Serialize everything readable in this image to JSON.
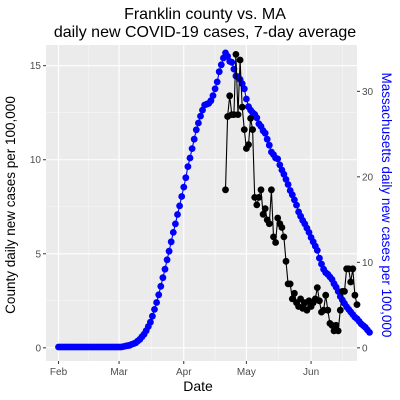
{
  "chart_data": {
    "type": "line",
    "title": "Franklin county vs. MA",
    "subtitle": "daily new COVID-19 cases, 7-day average",
    "xlabel": "Date",
    "ylabel_left": "County daily new cases per 100,000",
    "ylabel_right": "Massachusetts daily new cases per 100,000",
    "x_domain": [
      "2020-01-26",
      "2020-06-23"
    ],
    "x_ticks": [
      {
        "date": "2020-02-01",
        "label": "Feb"
      },
      {
        "date": "2020-03-01",
        "label": "Mar"
      },
      {
        "date": "2020-04-01",
        "label": "Apr"
      },
      {
        "date": "2020-05-01",
        "label": "May"
      },
      {
        "date": "2020-06-01",
        "label": "Jun"
      }
    ],
    "y_left_lim": [
      -0.7,
      16.1
    ],
    "y_left_ticks": [
      0,
      5,
      10,
      15
    ],
    "y_right_ticks": [
      0,
      10,
      20,
      30
    ],
    "right_axis_scale": 2.2,
    "grid": true,
    "colors": {
      "panel": "#ebebeb",
      "grid_major": "#ffffff",
      "county": "#000000",
      "massachusetts": "#0000ff",
      "right_axis_title": "#0000ff"
    },
    "series": [
      {
        "axis": "right",
        "color": "#0000ff",
        "x_start": "2020-02-01",
        "values": [
          0.1,
          0.1,
          0.1,
          0.1,
          0.1,
          0.1,
          0.1,
          0.1,
          0.1,
          0.1,
          0.1,
          0.1,
          0.1,
          0.1,
          0.1,
          0.1,
          0.1,
          0.1,
          0.1,
          0.1,
          0.1,
          0.1,
          0.1,
          0.1,
          0.1,
          0.1,
          0.1,
          0.1,
          0.1,
          0.1,
          0.1,
          0.15,
          0.2,
          0.25,
          0.3,
          0.4,
          0.5,
          0.6,
          0.8,
          1.0,
          1.3,
          1.6,
          2.0,
          2.5,
          3.0,
          3.7,
          4.5,
          5.3,
          6.2,
          7.2,
          8.2,
          9.2,
          10.3,
          11.3,
          12.4,
          13.5,
          14.5,
          15.6,
          16.6,
          17.7,
          18.8,
          19.9,
          21.2,
          22.2,
          23.3,
          24.4,
          25.5,
          26.3,
          27.1,
          27.8,
          28.4,
          28.5,
          28.6,
          28.9,
          29.5,
          30.3,
          31.1,
          32.3,
          33.1,
          33.9,
          34.5,
          34.1,
          33.5,
          33.4,
          32.6,
          31.8,
          31.7,
          31.4,
          30.9,
          30.3,
          29.1,
          28.2,
          27.8,
          27.5,
          27.3,
          26.9,
          26.2,
          25.9,
          25.4,
          25.1,
          24.4,
          23.7,
          22.9,
          22.6,
          22.2,
          22.1,
          21.4,
          20.8,
          20.3,
          19.7,
          19.1,
          18.4,
          17.9,
          17.3,
          16.7,
          15.9,
          15.4,
          14.9,
          14.5,
          14.0,
          13.5,
          12.9,
          12.4,
          11.9,
          11.4,
          10.5,
          9.8,
          9.2,
          8.8,
          8.6,
          8.3,
          8.0,
          7.5,
          7.1,
          6.6,
          6.0,
          5.6,
          5.2,
          4.8,
          4.5,
          4.2,
          3.9,
          3.6,
          3.4,
          3.1,
          2.8,
          2.6,
          2.4,
          2.1,
          1.8
        ]
      },
      {
        "axis": "left",
        "color": "#000000",
        "x_start": "2020-04-21",
        "values": [
          8.4,
          12.3,
          13.4,
          12.4,
          12.4,
          15.6,
          12.4,
          15.3,
          12.8,
          11.6,
          10.6,
          10.8,
          12.2,
          11.6,
          8.0,
          7.6,
          8.0,
          8.4,
          7.1,
          7.4,
          6.8,
          6.6,
          8.4,
          5.9,
          5.6,
          6.9,
          6.6,
          6.4,
          5.9,
          4.6,
          3.4,
          3.4,
          2.6,
          2.9,
          2.4,
          2.2,
          2.6,
          2.1,
          2.4,
          2.0,
          2.5,
          2.2,
          2.4,
          2.6,
          3.2,
          2.5,
          1.9,
          2.0,
          2.8,
          2.0,
          1.3,
          1.2,
          0.9,
          1.2,
          0.9,
          2.0,
          3.0,
          3.0,
          4.2,
          4.2,
          3.5,
          4.2,
          2.8,
          2.3
        ]
      }
    ]
  }
}
